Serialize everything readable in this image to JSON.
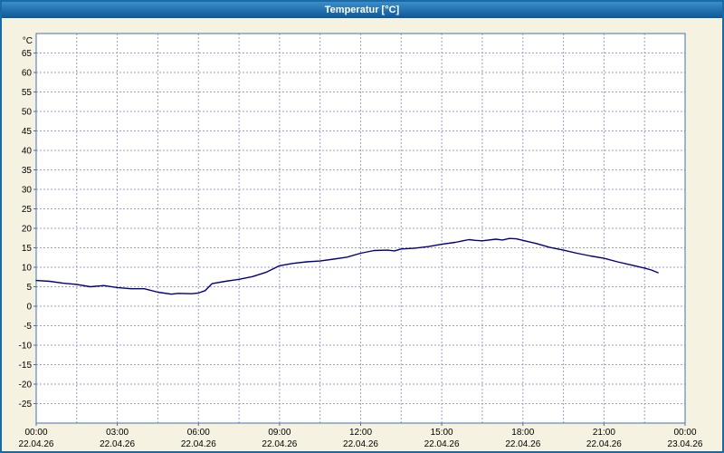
{
  "window": {
    "title": "Temperatur [°C]"
  },
  "colors": {
    "frame_border": "#1a6aa6",
    "titlebar_gradient_top": "#3b8ec9",
    "titlebar_gradient_bottom": "#0d5795",
    "titlebar_text": "#ffffff",
    "background": "#f6f2e2"
  },
  "chart_data": {
    "type": "line",
    "title": "Temperatur [°C]",
    "ylabel": "°C",
    "ylim": [
      -30,
      70
    ],
    "yticks": [
      -25,
      -20,
      -15,
      -10,
      -5,
      0,
      5,
      10,
      15,
      20,
      25,
      30,
      35,
      40,
      45,
      50,
      55,
      60,
      65
    ],
    "x_ticks": {
      "hours": [
        0,
        3,
        6,
        9,
        12,
        15,
        18,
        21,
        24
      ],
      "times": [
        "00:00",
        "03:00",
        "06:00",
        "09:00",
        "12:00",
        "15:00",
        "18:00",
        "21:00",
        "00:00"
      ],
      "dates": [
        "22.04.26",
        "22.04.26",
        "22.04.26",
        "22.04.26",
        "22.04.26",
        "22.04.26",
        "22.04.26",
        "22.04.26",
        "23.04.26"
      ]
    },
    "grid": {
      "style": "dashed",
      "color": "#9c9ccd",
      "vertical_interval_hours": 1.5
    },
    "plot": {
      "background": "#ffffff",
      "border_color": "#4472a8"
    },
    "series": [
      {
        "name": "Temperatur",
        "color": "#000080",
        "points": [
          [
            0,
            6.6
          ],
          [
            0.5,
            6.4
          ],
          [
            1,
            5.9
          ],
          [
            1.5,
            5.6
          ],
          [
            2,
            5.0
          ],
          [
            2.5,
            5.3
          ],
          [
            3,
            4.8
          ],
          [
            3.5,
            4.5
          ],
          [
            4,
            4.5
          ],
          [
            4.5,
            3.6
          ],
          [
            5,
            3.1
          ],
          [
            5.25,
            3.3
          ],
          [
            5.75,
            3.2
          ],
          [
            6,
            3.4
          ],
          [
            6.25,
            4.0
          ],
          [
            6.5,
            5.8
          ],
          [
            7,
            6.4
          ],
          [
            7.5,
            6.9
          ],
          [
            8,
            7.6
          ],
          [
            8.5,
            8.7
          ],
          [
            9,
            10.4
          ],
          [
            9.5,
            11.0
          ],
          [
            10,
            11.4
          ],
          [
            10.5,
            11.6
          ],
          [
            11,
            12.1
          ],
          [
            11.5,
            12.6
          ],
          [
            12,
            13.6
          ],
          [
            12.5,
            14.3
          ],
          [
            13,
            14.4
          ],
          [
            13.25,
            14.2
          ],
          [
            13.5,
            14.7
          ],
          [
            14,
            14.9
          ],
          [
            14.5,
            15.3
          ],
          [
            15,
            15.9
          ],
          [
            15.5,
            16.4
          ],
          [
            16,
            17.1
          ],
          [
            16.25,
            16.9
          ],
          [
            16.5,
            16.8
          ],
          [
            17,
            17.2
          ],
          [
            17.25,
            17.0
          ],
          [
            17.5,
            17.4
          ],
          [
            17.75,
            17.3
          ],
          [
            18,
            16.9
          ],
          [
            18.5,
            16.1
          ],
          [
            19,
            15.1
          ],
          [
            19.5,
            14.4
          ],
          [
            20,
            13.6
          ],
          [
            20.5,
            12.9
          ],
          [
            21,
            12.3
          ],
          [
            21.5,
            11.4
          ],
          [
            22,
            10.6
          ],
          [
            22.5,
            9.8
          ],
          [
            22.75,
            9.3
          ],
          [
            23,
            8.6
          ]
        ]
      }
    ]
  }
}
